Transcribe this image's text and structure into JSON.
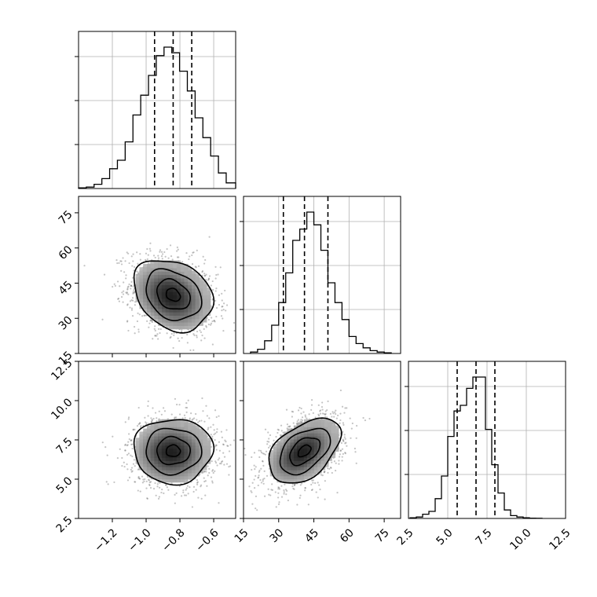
{
  "chart_data": {
    "type": "corner",
    "grid": true,
    "params": [
      {
        "range": [
          -1.4,
          -0.47
        ],
        "ticks": [
          -1.2,
          -1.0,
          -0.8,
          -0.6
        ],
        "tick_labels": [
          "−1.2",
          "−1.0",
          "−0.8",
          "−0.6"
        ],
        "quantiles": [
          -0.95,
          -0.84,
          -0.73
        ],
        "hist_y_ticks": [
          0.28,
          0.56,
          0.84
        ],
        "hist": {
          "edges": [
            -1.4,
            -1.354,
            -1.308,
            -1.262,
            -1.216,
            -1.17,
            -1.124,
            -1.078,
            -1.032,
            -0.986,
            -0.94,
            -0.894,
            -0.848,
            -0.802,
            -0.756,
            -0.71,
            -0.664,
            -0.618,
            -0.572,
            -0.526,
            -0.47
          ],
          "heights": [
            0.005,
            0.01,
            0.03,
            0.07,
            0.14,
            0.2,
            0.33,
            0.52,
            0.66,
            0.8,
            0.94,
            1.0,
            0.96,
            0.83,
            0.69,
            0.5,
            0.36,
            0.23,
            0.11,
            0.04
          ]
        }
      },
      {
        "range": [
          15,
          82
        ],
        "ticks": [
          15,
          30,
          45,
          60,
          75
        ],
        "tick_labels": [
          "15",
          "30",
          "45",
          "60",
          "75"
        ],
        "quantiles": [
          32,
          41,
          51
        ],
        "hist_y_ticks": [
          0.28,
          0.56,
          0.84
        ],
        "hist": {
          "edges": [
            18,
            21,
            24,
            27,
            30,
            33,
            36,
            39,
            42,
            45,
            48,
            51,
            54,
            57,
            60,
            63,
            66,
            69,
            72,
            75,
            78
          ],
          "heights": [
            0.01,
            0.03,
            0.09,
            0.2,
            0.36,
            0.57,
            0.8,
            0.88,
            1.0,
            0.91,
            0.73,
            0.5,
            0.36,
            0.24,
            0.12,
            0.07,
            0.04,
            0.02,
            0.01,
            0.005
          ]
        }
      },
      {
        "range": [
          2.5,
          12.5
        ],
        "ticks": [
          2.5,
          5.0,
          7.5,
          10.0,
          12.5
        ],
        "tick_labels": [
          "2.5",
          "5.0",
          "7.5",
          "10.0",
          "12.5"
        ],
        "quantiles": [
          5.6,
          6.8,
          8.0
        ],
        "hist_y_ticks": [
          0.28,
          0.56,
          0.84
        ],
        "hist": {
          "edges": [
            2.6,
            3.0,
            3.4,
            3.8,
            4.2,
            4.6,
            5.0,
            5.4,
            5.8,
            6.2,
            6.6,
            7.0,
            7.4,
            7.8,
            8.2,
            8.6,
            9.0,
            9.4,
            9.8,
            10.2,
            10.6,
            11.0
          ],
          "heights": [
            0.005,
            0.01,
            0.03,
            0.05,
            0.14,
            0.3,
            0.58,
            0.76,
            0.8,
            0.92,
            1.0,
            1.0,
            0.63,
            0.38,
            0.18,
            0.06,
            0.02,
            0.01,
            0.005,
            0.002,
            0.001
          ]
        }
      }
    ],
    "pairs": [
      {
        "x_param": 0,
        "y_param": 1,
        "mean": [
          -0.84,
          40
        ],
        "sd": [
          0.13,
          8.5
        ],
        "rho": -0.25,
        "contour_levels": [
          0.2,
          0.45,
          0.75,
          0.95
        ]
      },
      {
        "x_param": 0,
        "y_param": 2,
        "mean": [
          -0.84,
          6.8
        ],
        "sd": [
          0.13,
          1.15
        ],
        "rho": 0.0,
        "contour_levels": [
          0.2,
          0.45,
          0.75,
          0.95
        ]
      },
      {
        "x_param": 1,
        "y_param": 2,
        "mean": [
          41,
          6.8
        ],
        "sd": [
          8.5,
          1.15
        ],
        "rho": 0.45,
        "contour_levels": [
          0.2,
          0.45,
          0.75,
          0.95
        ]
      }
    ]
  }
}
